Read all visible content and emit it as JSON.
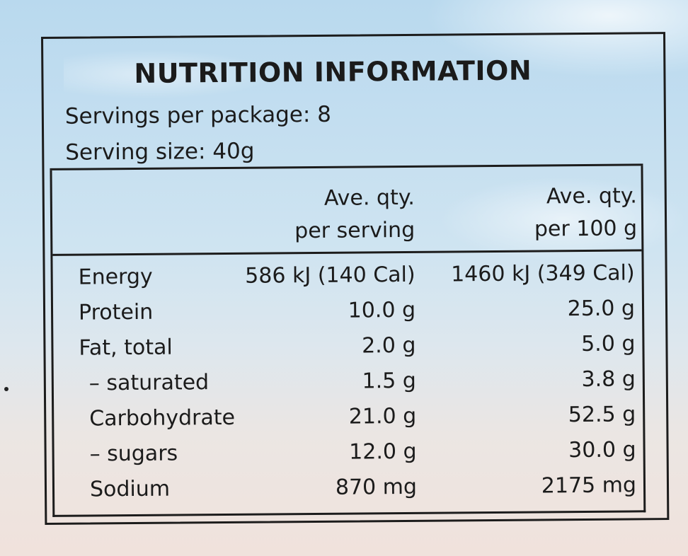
{
  "title": "NUTRITION INFORMATION",
  "servings_per_package": "Servings per package: 8",
  "serving_size": "Serving size: 40g",
  "columns": {
    "per_serving_line1": "Ave. qty.",
    "per_serving_line2": "per serving",
    "per_100g_line1": "Ave. qty.",
    "per_100g_line2": "per 100 g"
  },
  "rows": [
    {
      "label": "Energy",
      "per_serving": "586 kJ (140 Cal)",
      "per_100g": "1460 kJ (349 Cal)"
    },
    {
      "label": "Protein",
      "per_serving": "10.0 g",
      "per_100g": "25.0 g"
    },
    {
      "label": "Fat, total",
      "per_serving": "2.0 g",
      "per_100g": "5.0 g"
    },
    {
      "label": "– saturated",
      "per_serving": "1.5 g",
      "per_100g": "3.8 g"
    },
    {
      "label": "Carbohydrate",
      "per_serving": "21.0 g",
      "per_100g": "52.5 g"
    },
    {
      "label": "– sugars",
      "per_serving": "12.0 g",
      "per_100g": "30.0 g"
    },
    {
      "label": "Sodium",
      "per_serving": "870 mg",
      "per_100g": "2175 mg"
    }
  ]
}
